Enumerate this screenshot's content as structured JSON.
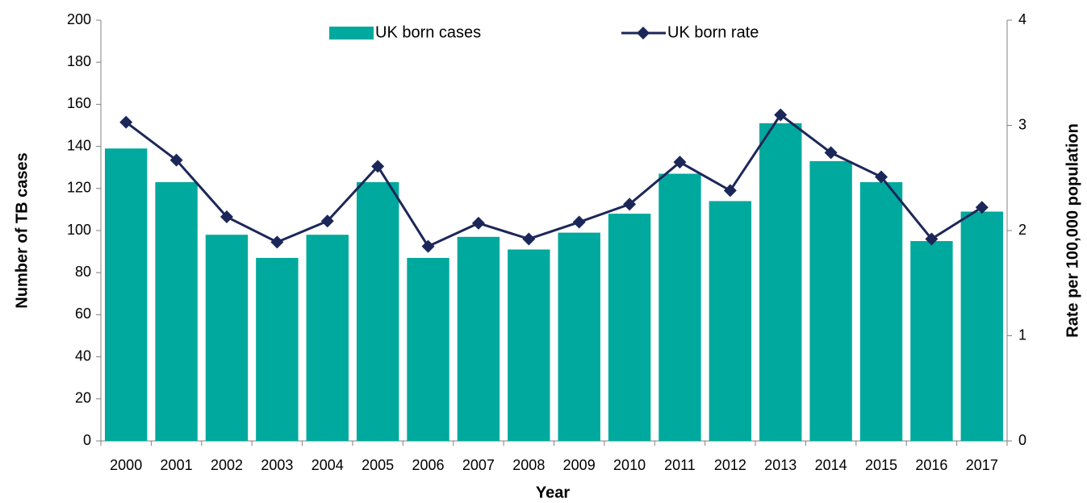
{
  "chart_data": {
    "type": "bar-line",
    "x_label": "Year",
    "y_label": "Number of TB cases",
    "y2_label": "Rate per 100,000 population",
    "categories": [
      "2000",
      "2001",
      "2002",
      "2003",
      "2004",
      "2005",
      "2006",
      "2007",
      "2008",
      "2009",
      "2010",
      "2011",
      "2012",
      "2013",
      "2014",
      "2015",
      "2016",
      "2017"
    ],
    "series": [
      {
        "name": "UK born cases",
        "type": "bar",
        "color": "#00a99d",
        "values": [
          139,
          123,
          98,
          87,
          98,
          123,
          87,
          97,
          91,
          99,
          108,
          127,
          114,
          151,
          133,
          123,
          95,
          109
        ]
      },
      {
        "name": "UK born rate",
        "type": "line",
        "axis": "y2",
        "color": "#1c2759",
        "values": [
          3.03,
          2.67,
          2.13,
          1.89,
          2.09,
          2.61,
          1.85,
          2.07,
          1.92,
          2.08,
          2.25,
          2.65,
          2.38,
          3.1,
          2.74,
          2.51,
          1.92,
          2.22
        ]
      }
    ],
    "ylim": [
      0,
      200
    ],
    "yticks": [
      0,
      20,
      40,
      60,
      80,
      100,
      120,
      140,
      160,
      180,
      200
    ],
    "y2lim": [
      0,
      4
    ],
    "y2ticks": [
      0,
      1,
      2,
      3,
      4
    ],
    "grid": false,
    "legend": "top"
  }
}
